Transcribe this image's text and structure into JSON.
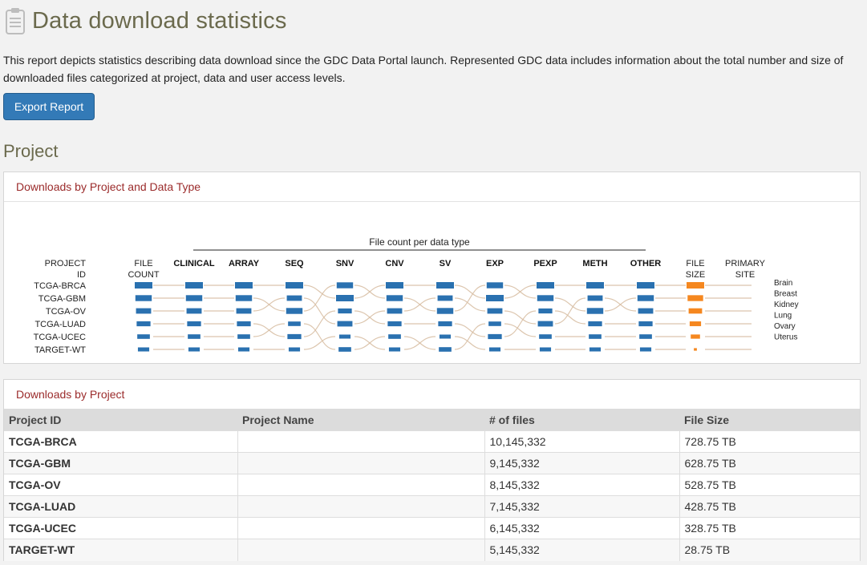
{
  "page": {
    "title": "Data download statistics",
    "intro": "This report depicts statistics describing data download since the GDC Data Portal launch. Represented GDC data includes information about the total number and size of downloaded files categorized at project, data and user access levels.",
    "export_label": "Export Report",
    "section_title": "Project"
  },
  "chart_panel": {
    "heading": "Downloads by Project and Data Type"
  },
  "chart_data": {
    "type": "parallel-sets",
    "title": "File count per data type",
    "left_header": [
      "PROJECT",
      "ID"
    ],
    "file_count_header": [
      "FILE",
      "COUNT"
    ],
    "file_size_header": [
      "FILE",
      "SIZE"
    ],
    "site_header": [
      "PRIMARY",
      "SITE"
    ],
    "projects": [
      "TCGA-BRCA",
      "TCGA-GBM",
      "TCGA-OV",
      "TCGA-LUAD",
      "TCGA-UCEC",
      "TARGET-WT"
    ],
    "data_types": [
      "CLINICAL",
      "ARRAY",
      "SEQ",
      "SNV",
      "CNV",
      "SV",
      "EXP",
      "PEXP",
      "METH",
      "OTHER"
    ],
    "primary_sites": [
      "Brain",
      "Breast",
      "Kidney",
      "Lung",
      "Ovary",
      "Uterus"
    ],
    "file_count": [
      10145332,
      9145332,
      8145332,
      7145332,
      6145332,
      5145332
    ],
    "file_size_tb": [
      728.75,
      628.75,
      528.75,
      428.75,
      328.75,
      28.75
    ],
    "colors": {
      "bar": "#2a71b0",
      "size_bar": "#f5871f",
      "link": "#d8bfa4",
      "axis": "#222222"
    }
  },
  "table_panel": {
    "heading": "Downloads by Project",
    "columns": [
      "Project ID",
      "Project Name",
      "# of files",
      "File Size"
    ],
    "rows": [
      {
        "id": "TCGA-BRCA",
        "name": "",
        "files": "10,145,332",
        "size": "728.75 TB"
      },
      {
        "id": "TCGA-GBM",
        "name": "",
        "files": "9,145,332",
        "size": "628.75 TB"
      },
      {
        "id": "TCGA-OV",
        "name": "",
        "files": "8,145,332",
        "size": "528.75 TB"
      },
      {
        "id": "TCGA-LUAD",
        "name": "",
        "files": "7,145,332",
        "size": "428.75 TB"
      },
      {
        "id": "TCGA-UCEC",
        "name": "",
        "files": "6,145,332",
        "size": "328.75 TB"
      },
      {
        "id": "TARGET-WT",
        "name": "",
        "files": "5,145,332",
        "size": "28.75 TB"
      }
    ]
  }
}
